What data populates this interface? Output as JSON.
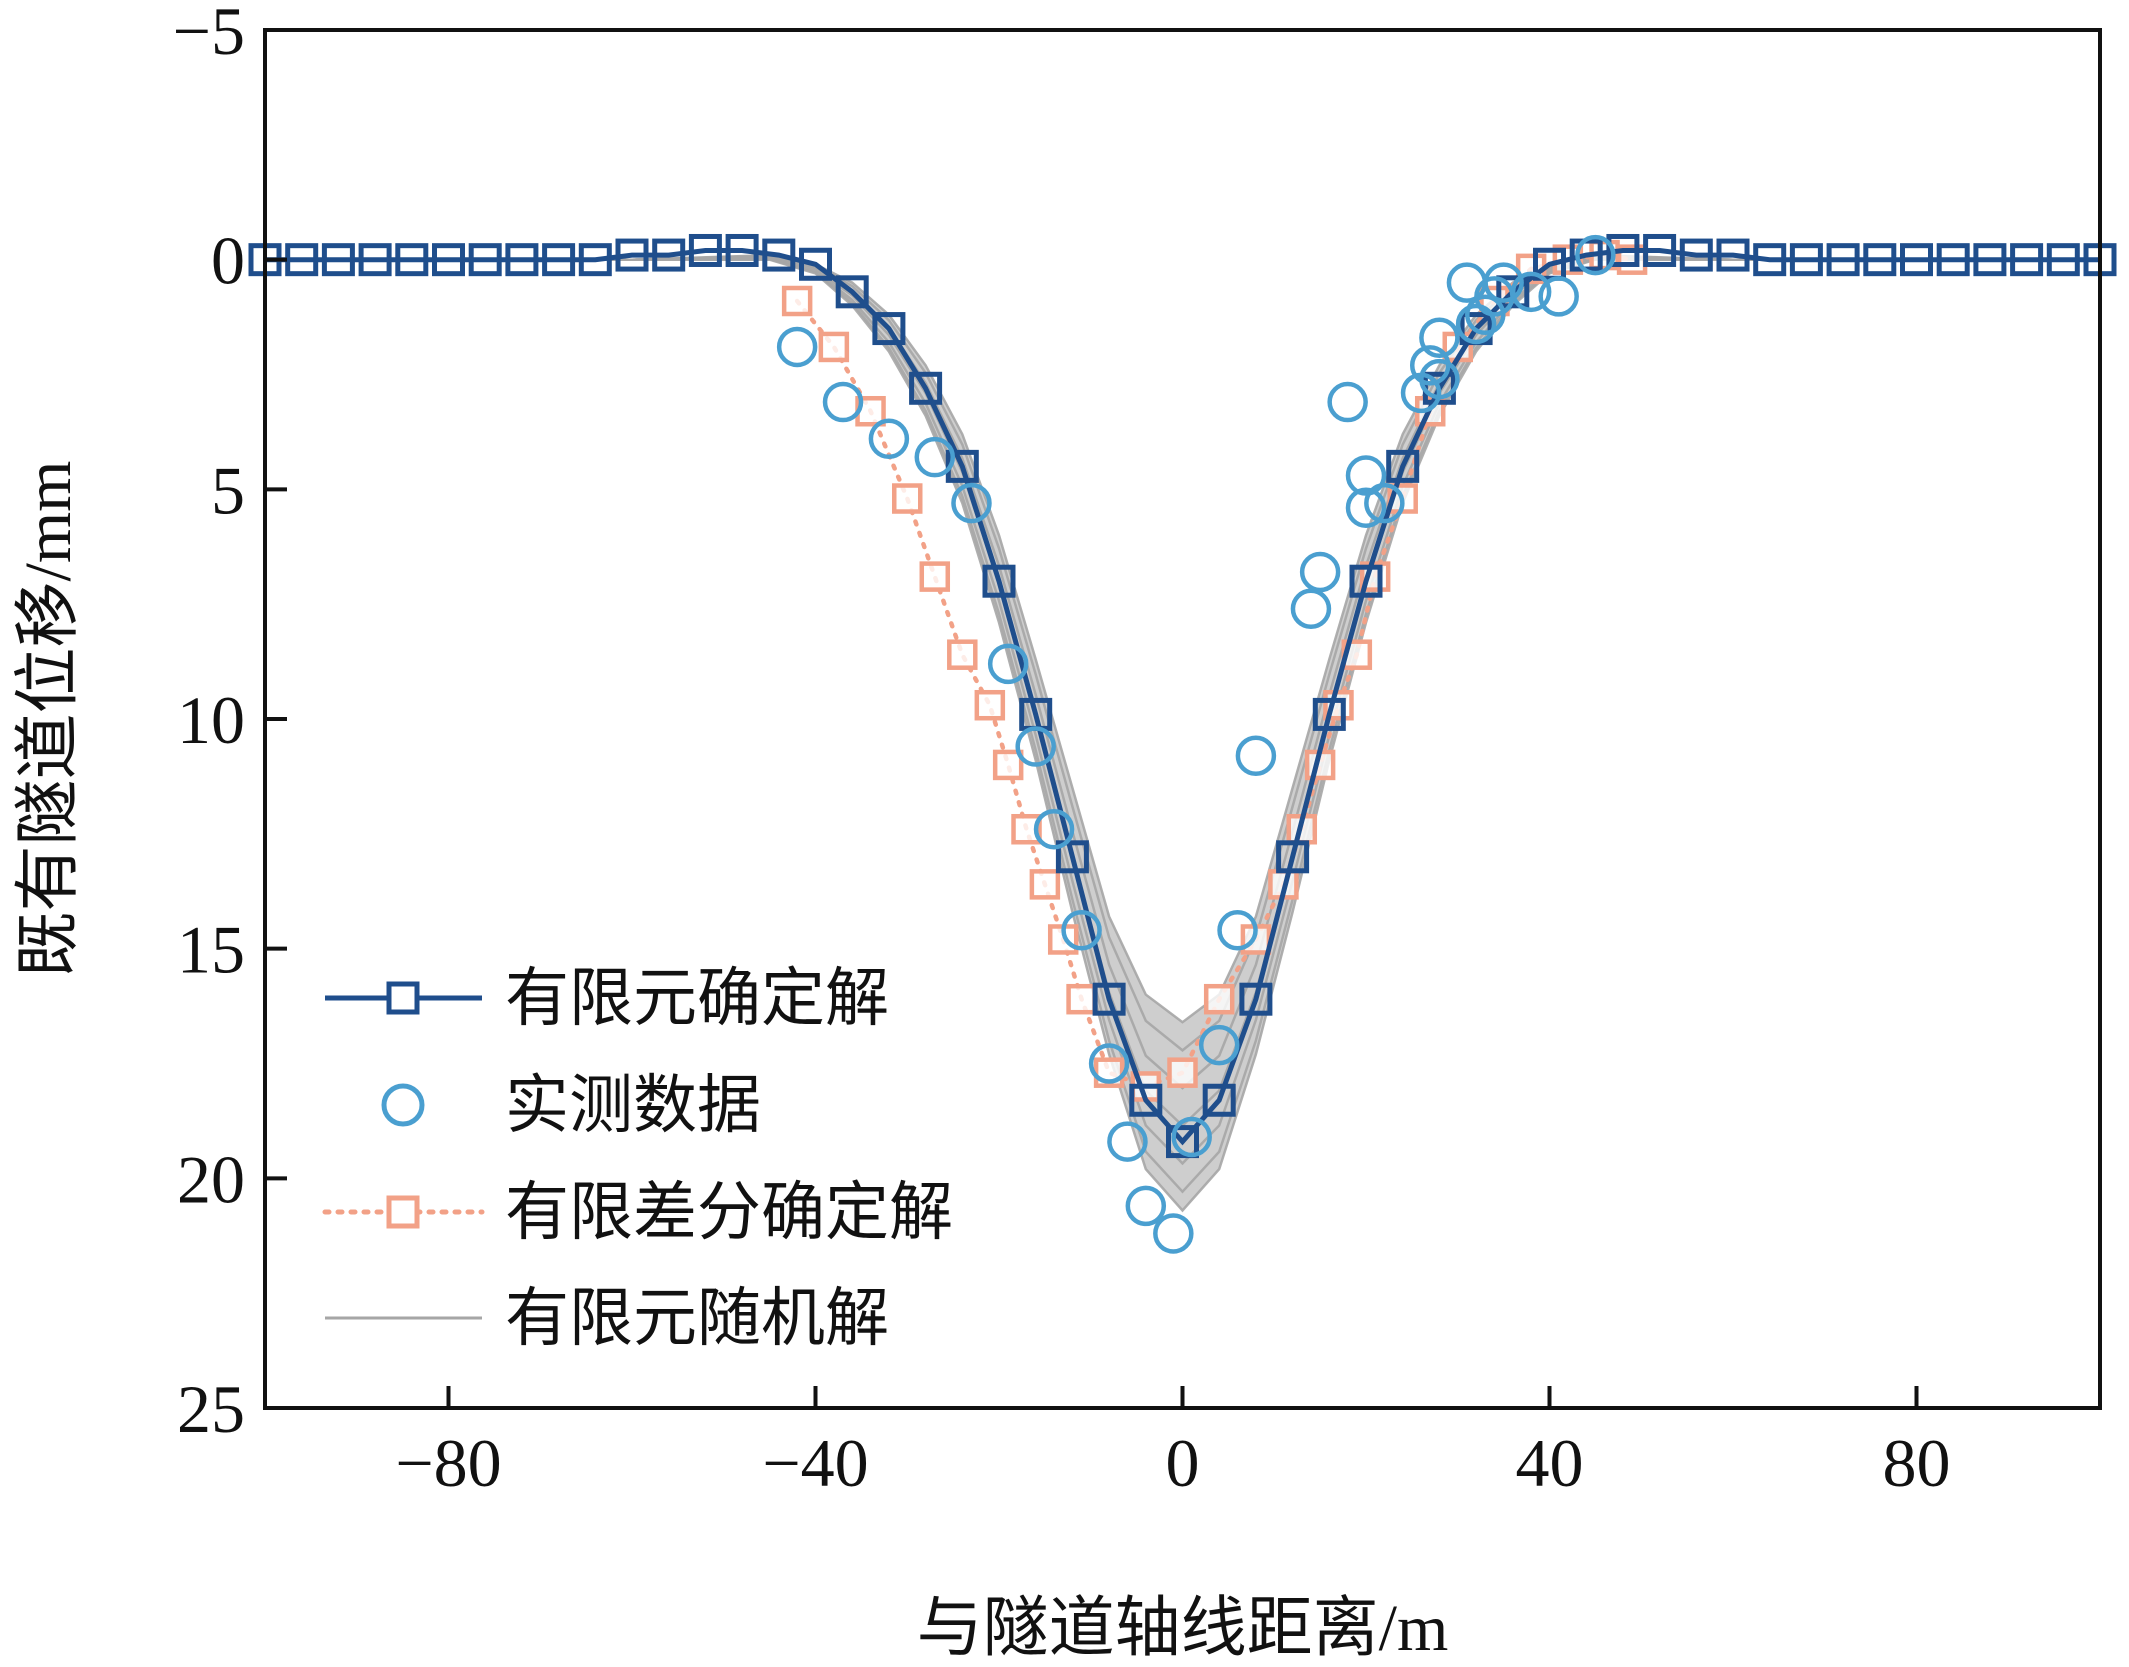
{
  "chart_data": {
    "type": "line",
    "title": "",
    "xlabel": "与隧道轴线距离/m",
    "ylabel": "既有隧道位移/mm",
    "xlim": [
      -100,
      100
    ],
    "ylim": [
      -5,
      25
    ],
    "y_inverted": true,
    "x_ticks": [
      -80,
      -40,
      0,
      40,
      80
    ],
    "x_tick_labels": [
      "−80",
      "−40",
      "0",
      "40",
      "80"
    ],
    "y_ticks": [
      -5,
      0,
      5,
      10,
      15,
      20,
      25
    ],
    "y_tick_labels": [
      "−5",
      "0",
      "5",
      "10",
      "15",
      "20",
      "25"
    ],
    "grid": false,
    "legend_position": "lower-left",
    "colors": {
      "fem": "#1f4e8c",
      "measured": "#4a9fd0",
      "fdm": "#f2a187",
      "random": "#a6a6a6",
      "band": "#bdbdbd"
    },
    "series": [
      {
        "name": "有限元确定解",
        "style": "solid line with square markers",
        "x": [
          -100,
          -96,
          -92,
          -88,
          -84,
          -80,
          -76,
          -72,
          -68,
          -64,
          -60,
          -56,
          -52,
          -48,
          -44,
          -40,
          -36,
          -32,
          -28,
          -24,
          -20,
          -16,
          -12,
          -8,
          -4,
          0,
          4,
          8,
          12,
          16,
          20,
          24,
          28,
          32,
          36,
          40,
          44,
          48,
          52,
          56,
          60,
          64,
          68,
          72,
          76,
          80,
          84,
          88,
          92,
          96,
          100
        ],
        "y": [
          0,
          0,
          0,
          0,
          0,
          0,
          0,
          0,
          0,
          0,
          -0.1,
          -0.1,
          -0.2,
          -0.2,
          -0.1,
          0.1,
          0.7,
          1.5,
          2.8,
          4.5,
          7.0,
          9.9,
          13.0,
          16.1,
          18.3,
          19.2,
          18.3,
          16.1,
          13.0,
          9.9,
          7.0,
          4.5,
          2.8,
          1.5,
          0.7,
          0.1,
          -0.1,
          -0.2,
          -0.2,
          -0.1,
          -0.1,
          0,
          0,
          0,
          0,
          0,
          0,
          0,
          0,
          0,
          0
        ]
      },
      {
        "name": "实测数据",
        "style": "open circles",
        "x": [
          -42,
          -37,
          -32,
          -27,
          -23,
          -19,
          -16,
          -14,
          -11,
          -8,
          -6,
          -4,
          -1,
          1,
          4,
          6,
          8,
          14,
          15,
          18,
          20,
          20,
          22,
          26,
          27,
          28,
          28,
          31,
          32,
          33,
          34,
          35,
          38,
          41,
          45
        ],
        "y": [
          1.9,
          3.1,
          3.9,
          4.3,
          5.3,
          8.8,
          10.6,
          12.4,
          14.6,
          17.5,
          19.2,
          20.6,
          21.2,
          19.1,
          17.1,
          14.6,
          10.8,
          7.6,
          6.8,
          3.1,
          4.7,
          5.4,
          5.3,
          2.9,
          2.3,
          2.6,
          1.7,
          0.5,
          1.4,
          1.2,
          0.8,
          0.5,
          0.7,
          0.8,
          -0.1
        ]
      },
      {
        "name": "有限差分确定解",
        "style": "dotted line with square markers",
        "x": [
          -42,
          -38,
          -34,
          -30,
          -27,
          -24,
          -21,
          -19,
          -17,
          -15,
          -13,
          -11,
          -8,
          -4,
          0,
          4,
          8,
          11,
          13,
          15,
          17,
          19,
          21,
          24,
          27,
          30,
          34,
          38,
          42,
          46,
          49
        ],
        "y": [
          0.9,
          1.9,
          3.3,
          5.2,
          6.9,
          8.6,
          9.7,
          11.0,
          12.4,
          13.6,
          14.8,
          16.1,
          17.7,
          18.0,
          17.7,
          16.1,
          14.8,
          13.6,
          12.4,
          11.0,
          9.7,
          8.6,
          6.9,
          5.2,
          3.3,
          1.9,
          0.9,
          0.2,
          0.0,
          -0.1,
          0.0
        ]
      },
      {
        "name": "有限元随机解",
        "style": "thin grey lines forming an uncertainty band",
        "envelope_x": [
          -100,
          -60,
          -45,
          -40,
          -36,
          -32,
          -28,
          -24,
          -20,
          -16,
          -12,
          -8,
          -4,
          0,
          4,
          8,
          12,
          16,
          20,
          24,
          28,
          32,
          36,
          40,
          45,
          60,
          100
        ],
        "envelope_upper": [
          0,
          0,
          -0.1,
          0.1,
          0.5,
          1.2,
          2.3,
          3.8,
          6.0,
          8.7,
          11.5,
          14.3,
          16.0,
          16.6,
          16.0,
          14.3,
          11.5,
          8.7,
          6.0,
          3.8,
          2.3,
          1.2,
          0.5,
          0.1,
          -0.1,
          0,
          0
        ],
        "envelope_lower": [
          0,
          0,
          0,
          0.3,
          1.0,
          2.0,
          3.4,
          5.3,
          7.9,
          10.9,
          14.2,
          17.3,
          19.8,
          20.7,
          19.8,
          17.3,
          14.2,
          10.9,
          7.9,
          5.3,
          3.4,
          2.0,
          1.0,
          0.3,
          0,
          0,
          0
        ]
      }
    ]
  }
}
